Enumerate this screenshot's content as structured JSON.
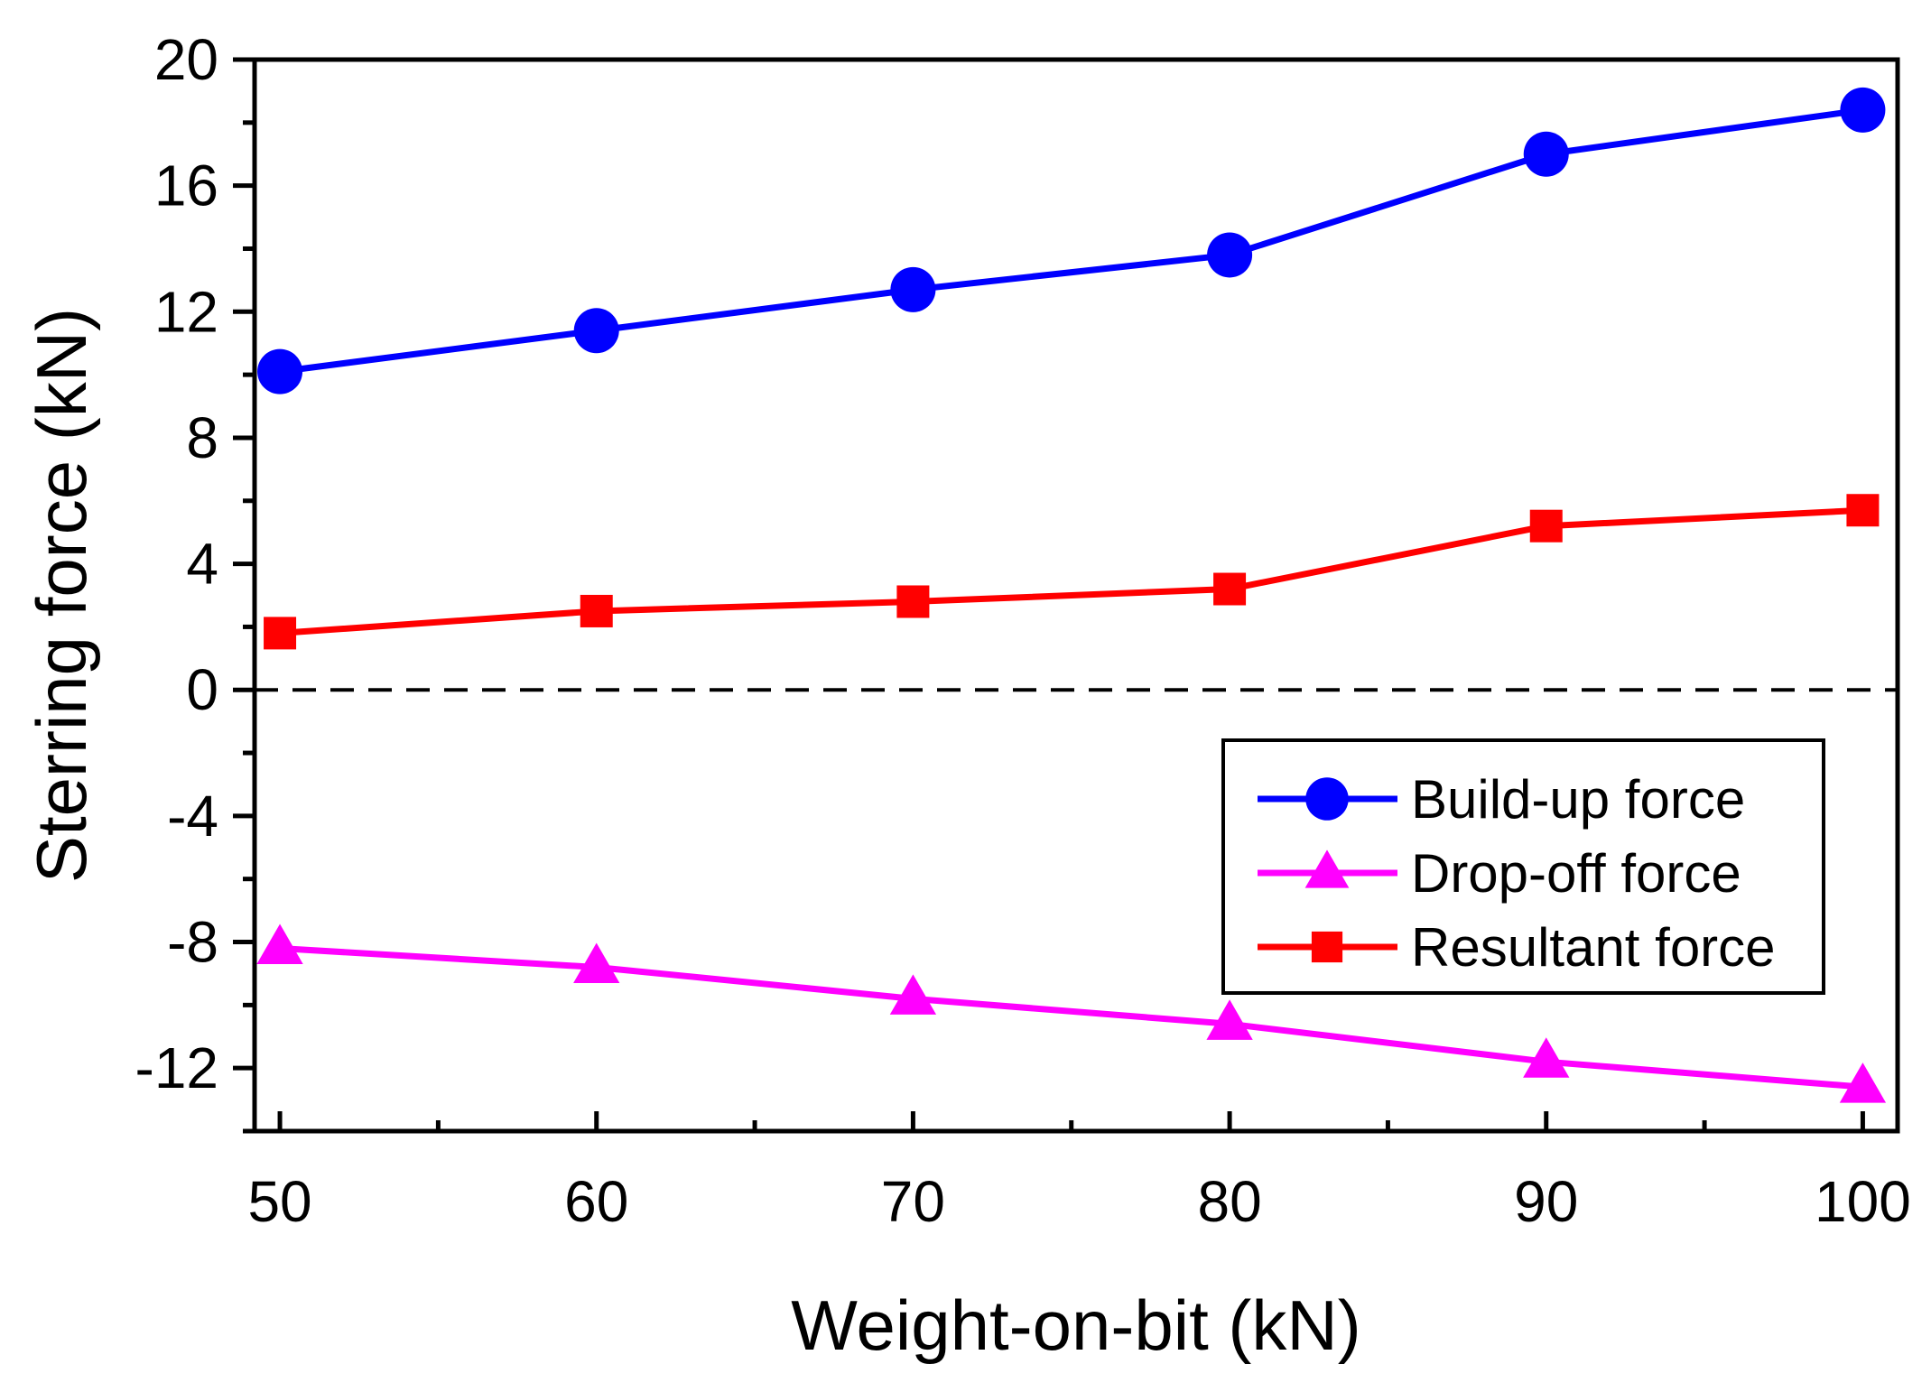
{
  "chart_data": {
    "type": "line",
    "title": "",
    "xlabel": "Weight-on-bit (kN)",
    "ylabel": "Sterring force (kN)",
    "x": [
      50,
      60,
      70,
      80,
      90,
      100
    ],
    "xlim": [
      49.2,
      101.1
    ],
    "ylim": [
      -14,
      20
    ],
    "xticks": [
      50,
      60,
      70,
      80,
      90,
      100
    ],
    "xminor_ticks": [
      55,
      65,
      75,
      85,
      95
    ],
    "yticks": [
      -12,
      -8,
      -4,
      0,
      4,
      8,
      12,
      16,
      20
    ],
    "yminor_ticks": [
      -14,
      -10,
      -6,
      -2,
      2,
      6,
      10,
      14,
      18
    ],
    "grid": false,
    "reference_line": {
      "y": 0,
      "style": "dashed",
      "color": "#000000"
    },
    "legend_position": "center-right",
    "series": [
      {
        "name": "Build-up force",
        "marker": "circle",
        "color": "#0000ff",
        "values": [
          10.1,
          11.4,
          12.7,
          13.8,
          17.0,
          18.4
        ]
      },
      {
        "name": "Drop-off force",
        "marker": "triangle",
        "color": "#ff00ff",
        "values": [
          -8.2,
          -8.8,
          -9.8,
          -10.6,
          -11.8,
          -12.6
        ]
      },
      {
        "name": "Resultant force",
        "marker": "square",
        "color": "#ff0000",
        "values": [
          1.8,
          2.5,
          2.8,
          3.2,
          5.2,
          5.7
        ]
      }
    ]
  }
}
